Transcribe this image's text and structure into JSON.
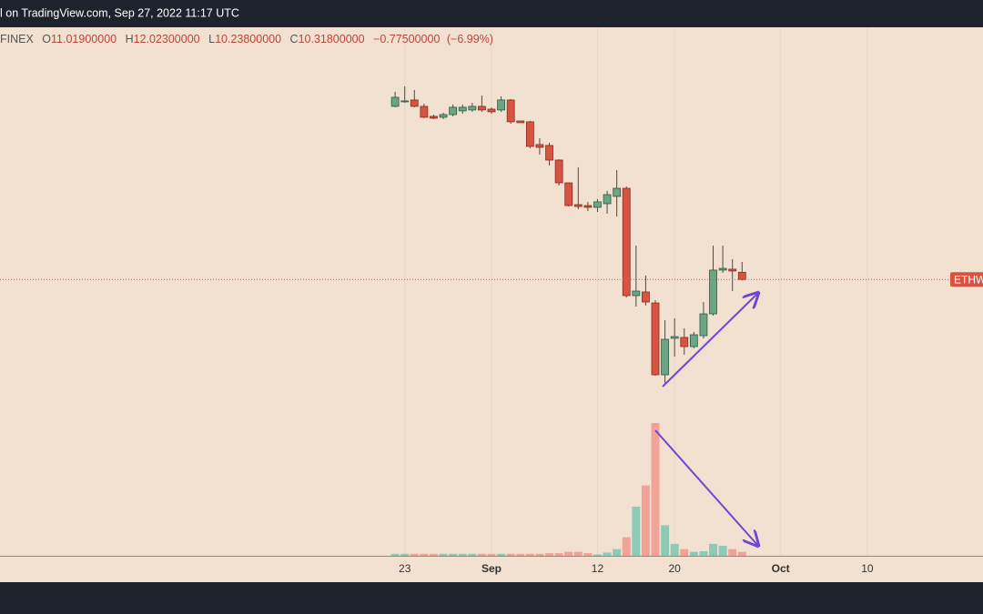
{
  "header": {
    "source": "l on TradingView.com, Sep 27, 2022 11:17 UTC",
    "exchange": "FINEX",
    "open_letter": "O",
    "open": {
      "value": 11.019,
      "label": "11.01900000"
    },
    "high_letter": "H",
    "high": {
      "value": 12.023,
      "label": "12.02300000"
    },
    "low_letter": "L",
    "low": {
      "value": 10.238,
      "label": "10.23800000"
    },
    "close_letter": "C",
    "close": {
      "value": 10.318,
      "label": "10.31800000"
    },
    "change": "−0.77500000",
    "change_pct": "(−6.99%)"
  },
  "chart_data": {
    "type": "candlestick",
    "up_color": "#6ba583",
    "down_color": "#d75442",
    "volume_up_color": "#8ecab6",
    "volume_down_color": "#f1a39a",
    "grid": true,
    "price_label": "ETHW",
    "x": [
      "2022-08-22",
      "2022-08-23",
      "2022-08-24",
      "2022-08-25",
      "2022-08-26",
      "2022-08-27",
      "2022-08-28",
      "2022-08-29",
      "2022-08-30",
      "2022-08-31",
      "2022-09-01",
      "2022-09-02",
      "2022-09-03",
      "2022-09-04",
      "2022-09-05",
      "2022-09-06",
      "2022-09-07",
      "2022-09-08",
      "2022-09-09",
      "2022-09-10",
      "2022-09-11",
      "2022-09-12",
      "2022-09-13",
      "2022-09-14",
      "2022-09-15",
      "2022-09-16",
      "2022-09-17",
      "2022-09-18",
      "2022-09-19",
      "2022-09-20",
      "2022-09-21",
      "2022-09-22",
      "2022-09-23",
      "2022-09-24",
      "2022-09-25",
      "2022-09-26",
      "2022-09-27"
    ],
    "open": [
      27.14,
      27.58,
      27.76,
      27.14,
      26.17,
      26.08,
      26.34,
      26.7,
      26.79,
      27.14,
      26.87,
      26.79,
      27.76,
      25.72,
      25.64,
      23.43,
      23.34,
      21.92,
      19.71,
      17.59,
      17.5,
      17.33,
      17.68,
      18.39,
      19.18,
      8.75,
      9.11,
      8.04,
      1.06,
      4.6,
      4.69,
      3.8,
      4.86,
      6.98,
      11.23,
      11.32,
      11.019
    ],
    "high": [
      28.55,
      29.08,
      28.73,
      27.4,
      26.34,
      26.52,
      27.32,
      27.32,
      27.49,
      28.2,
      27.05,
      28.11,
      27.85,
      25.72,
      25.72,
      24.04,
      23.6,
      22.01,
      19.71,
      21.22,
      17.86,
      18.12,
      18.92,
      20.95,
      19.36,
      13.61,
      10.7,
      8.31,
      6.36,
      6.54,
      5.57,
      5.22,
      8.13,
      13.61,
      13.61,
      12.29,
      12.023
    ],
    "low": [
      27.05,
      27.49,
      27.05,
      25.99,
      25.9,
      25.9,
      26.17,
      26.43,
      26.61,
      26.61,
      26.43,
      26.61,
      25.46,
      25.55,
      23.07,
      22.45,
      21.39,
      19.45,
      17.41,
      17.15,
      16.97,
      16.88,
      16.71,
      16.44,
      8.57,
      7.69,
      7.78,
      0.97,
      0.18,
      2.83,
      3.01,
      3.62,
      4.6,
      6.81,
      10.96,
      9.19,
      10.238
    ],
    "close": [
      28.02,
      27.67,
      27.14,
      26.08,
      25.99,
      26.34,
      27.05,
      27.05,
      27.14,
      26.79,
      26.61,
      27.76,
      25.64,
      25.55,
      23.25,
      23.16,
      21.92,
      19.71,
      17.5,
      17.41,
      17.33,
      17.86,
      18.56,
      19.18,
      8.75,
      9.19,
      8.13,
      1.06,
      4.51,
      4.77,
      3.8,
      4.95,
      6.98,
      11.23,
      11.4,
      11.14,
      10.318
    ],
    "volume": [
      1.5,
      1.5,
      1.5,
      1.5,
      1.5,
      1.5,
      1.5,
      1.5,
      1.5,
      1.5,
      1.5,
      1.5,
      1.5,
      1.5,
      1.5,
      1.5,
      2,
      2,
      3,
      3,
      2,
      1,
      2.5,
      5,
      14,
      37,
      53,
      100,
      23,
      9,
      5,
      3,
      3.5,
      9,
      7.5,
      5,
      3
    ],
    "xlim": [
      "2022-07-12",
      "2022-10-22"
    ],
    "ylim": [
      0,
      35
    ],
    "volume_lim": [
      0,
      100
    ],
    "xticks": [
      {
        "value": "2022-08-23",
        "label": "23"
      },
      {
        "value": "2022-09-01",
        "label": "Sep"
      },
      {
        "value": "2022-09-12",
        "label": "12"
      },
      {
        "value": "2022-09-20",
        "label": "20"
      },
      {
        "value": "2022-10-01",
        "label": "Oct"
      },
      {
        "value": "2022-10-10",
        "label": "10"
      }
    ]
  }
}
